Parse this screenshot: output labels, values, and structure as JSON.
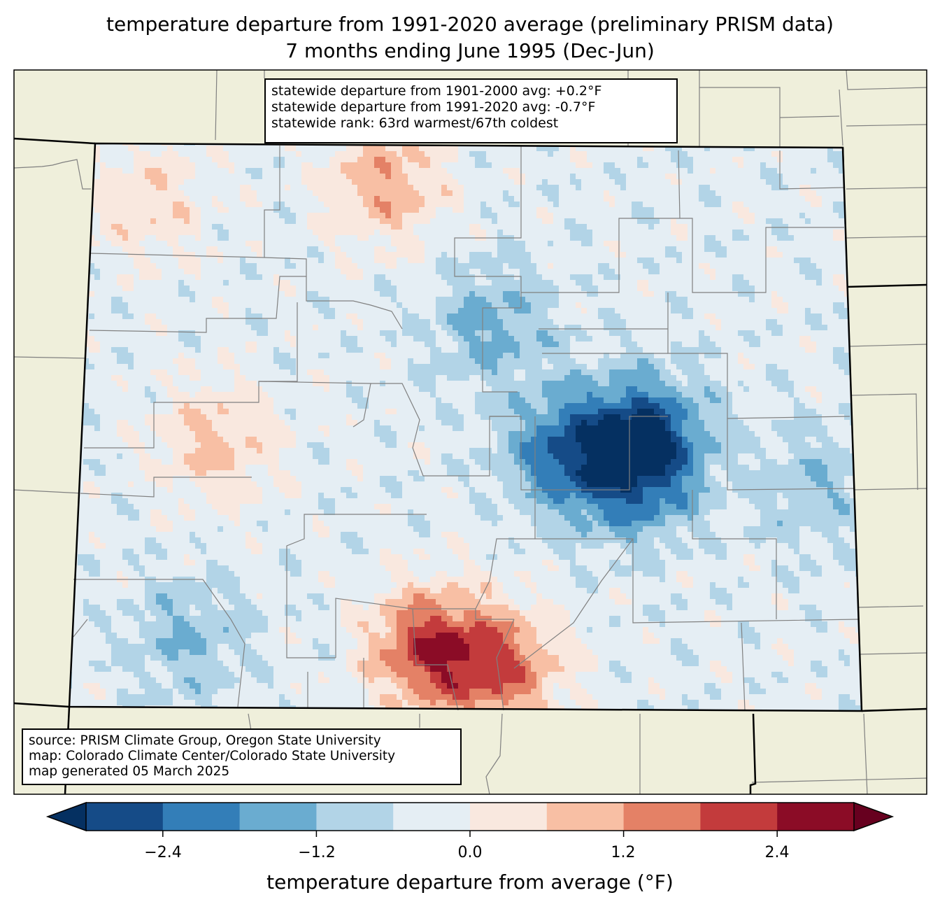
{
  "title": {
    "line1": "temperature departure from 1991-2020 average (preliminary PRISM data)",
    "line2": "7 months ending June 1995 (Dec-Jun)"
  },
  "stats_box": {
    "line1": "statewide departure from 1901-2000 avg: +0.2°F",
    "line2": "statewide departure from 1991-2020 avg: -0.7°F",
    "line3": "statewide rank: 63rd warmest/67th coldest"
  },
  "source_box": {
    "line1": "source: PRISM Climate Group, Oregon State University",
    "line2": "map: Colorado Climate Center/Colorado State University",
    "line3": "map generated 05 March 2025"
  },
  "colorbar": {
    "label": "temperature departure from average (°F)",
    "ticks": [
      "−2.4",
      "−1.2",
      "0.0",
      "1.2",
      "2.4"
    ],
    "tick_values": [
      -2.4,
      -1.2,
      0.0,
      1.2,
      2.4
    ],
    "range": [
      -3.0,
      3.0
    ],
    "bounds": [
      -3.0,
      -2.4,
      -1.8,
      -1.2,
      -0.6,
      0.0,
      0.6,
      1.2,
      1.8,
      2.4,
      3.0
    ],
    "under_color": "#053061",
    "over_color": "#67001f",
    "colors": [
      "#154b87",
      "#337eb8",
      "#6aacd0",
      "#b2d4e7",
      "#e5eef4",
      "#f9e8df",
      "#f8bfa4",
      "#e48166",
      "#c33b3c",
      "#8b0c26"
    ]
  },
  "map": {
    "land_color": "#efefdb",
    "county_line_color": "#808080",
    "state_line_color": "#000000",
    "base_field_value": -0.35,
    "anomalies": [
      {
        "name": "san-luis-valley-warm",
        "lon": -105.85,
        "lat": 37.45,
        "value": 2.1
      },
      {
        "name": "huerfano-warm",
        "lon": -105.2,
        "lat": 37.3,
        "value": 1.6
      },
      {
        "name": "north-park-warm",
        "lon": -106.3,
        "lat": 40.75,
        "value": 1.1
      },
      {
        "name": "elbert-cold",
        "lon": -103.9,
        "lat": 38.95,
        "value": -2.7
      },
      {
        "name": "el-paso-cold",
        "lon": -104.6,
        "lat": 38.85,
        "value": -2.3
      },
      {
        "name": "lincoln-cold",
        "lon": -104.0,
        "lat": 38.6,
        "value": -1.5
      },
      {
        "name": "front-range-cold",
        "lon": -105.3,
        "lat": 39.75,
        "value": -1.4
      },
      {
        "name": "southeast-plains-mild",
        "lon": -102.8,
        "lat": 37.4,
        "value": -0.3
      },
      {
        "name": "grand-mesa-warm",
        "lon": -107.8,
        "lat": 38.9,
        "value": 0.8
      },
      {
        "name": "sw-cold",
        "lon": -108.0,
        "lat": 37.5,
        "value": -1.2
      },
      {
        "name": "northwest-warm",
        "lon": -108.5,
        "lat": 40.6,
        "value": 0.5
      },
      {
        "name": "ne-plains-cold",
        "lon": -102.4,
        "lat": 38.6,
        "value": -1.1
      }
    ]
  },
  "chart_data": {
    "type": "heatmap",
    "title": "temperature departure from 1991-2020 average (preliminary PRISM data)",
    "subtitle": "7 months ending June 1995 (Dec-Jun)",
    "region": "Colorado",
    "colorbar_label": "temperature departure from average (°F)",
    "value_range": [
      -3.0,
      3.0
    ],
    "levels": [
      -3.0,
      -2.4,
      -1.8,
      -1.2,
      -0.6,
      0.0,
      0.6,
      1.2,
      1.8,
      2.4,
      3.0
    ],
    "statewide_departure_1901_2000": 0.2,
    "statewide_departure_1991_2020": -0.7,
    "statewide_rank_warmest": 63,
    "statewide_rank_coldest": 67
  }
}
